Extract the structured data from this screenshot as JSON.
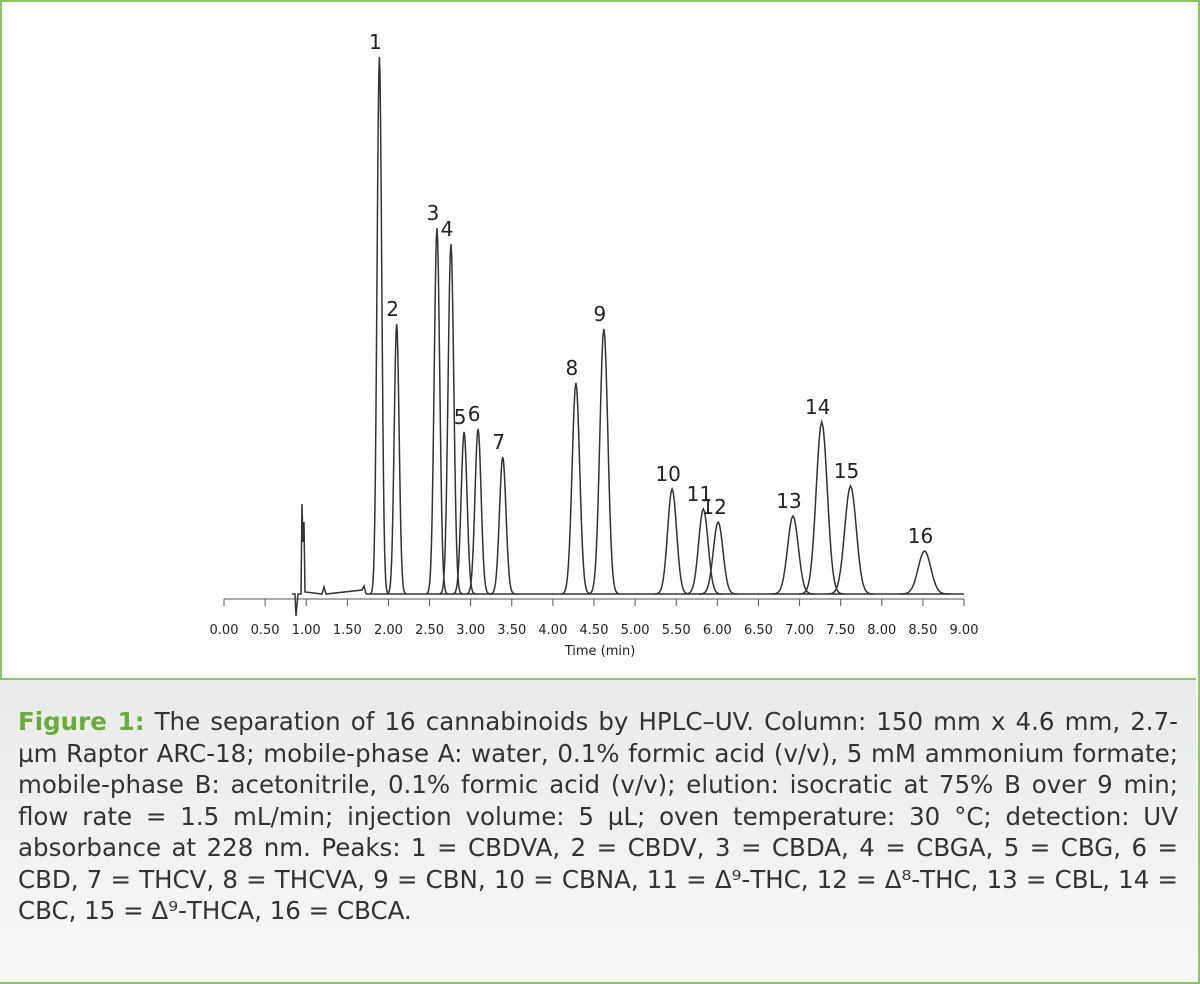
{
  "chart_data": {
    "type": "chromatogram",
    "xlabel": "Time (min)",
    "xlim": [
      0,
      9
    ],
    "xticks": [
      {
        "value": 0,
        "label": "0.00"
      },
      {
        "value": 0.5,
        "label": "0.50"
      },
      {
        "value": 1,
        "label": "1.00"
      },
      {
        "value": 1.5,
        "label": "1.50"
      },
      {
        "value": 2,
        "label": "2.00"
      },
      {
        "value": 2.5,
        "label": "2.50"
      },
      {
        "value": 3,
        "label": "3.00"
      },
      {
        "value": 3.5,
        "label": "3.50"
      },
      {
        "value": 4,
        "label": "4.00"
      },
      {
        "value": 4.5,
        "label": "4.50"
      },
      {
        "value": 5,
        "label": "5.00"
      },
      {
        "value": 5.5,
        "label": "5.50"
      },
      {
        "value": 6,
        "label": "6.00"
      },
      {
        "value": 6.5,
        "label": "6.50"
      },
      {
        "value": 7,
        "label": "7.00"
      },
      {
        "value": 7.5,
        "label": "7.50"
      },
      {
        "value": 8,
        "label": "8.00"
      },
      {
        "value": 8.5,
        "label": "8.50"
      },
      {
        "value": 9,
        "label": "9.00"
      }
    ],
    "ylim": [
      0,
      560
    ],
    "color": "#333333",
    "peaks": [
      {
        "label": "1",
        "time": 1.89,
        "height": 537
      },
      {
        "label": "2",
        "time": 2.1,
        "height": 270
      },
      {
        "label": "3",
        "time": 2.59,
        "height": 366
      },
      {
        "label": "4",
        "time": 2.76,
        "height": 350
      },
      {
        "label": "5",
        "time": 2.92,
        "height": 162
      },
      {
        "label": "6",
        "time": 3.09,
        "height": 165
      },
      {
        "label": "7",
        "time": 3.39,
        "height": 137
      },
      {
        "label": "8",
        "time": 4.28,
        "height": 211
      },
      {
        "label": "9",
        "time": 4.62,
        "height": 265
      },
      {
        "label": "10",
        "time": 5.45,
        "height": 105
      },
      {
        "label": "11",
        "time": 5.83,
        "height": 85
      },
      {
        "label": "12",
        "time": 6.01,
        "height": 72
      },
      {
        "label": "13",
        "time": 6.92,
        "height": 78
      },
      {
        "label": "14",
        "time": 7.27,
        "height": 172
      },
      {
        "label": "15",
        "time": 7.62,
        "height": 108
      },
      {
        "label": "16",
        "time": 8.52,
        "height": 43
      }
    ]
  },
  "caption": {
    "label": "Figure 1:",
    "text": "The separation of 16 cannabinoids by HPLC–UV. Column: 150 mm x 4.6 mm, 2.7-µm Raptor ARC-18; mobile-phase A: water, 0.1% formic acid (v/v), 5 mM ammonium formate; mobile-phase B: acetonitrile, 0.1% formic acid (v/v); elution: isocratic at 75% B over 9 min; flow rate = 1.5 mL/min; injection volume: 5 µL; oven temperature: 30 °C; detection: UV absorbance at 228 nm. Peaks: 1 = CBDVA, 2 = CBDV, 3 = CBDA, 4 = CBGA, 5 = CBG, 6 = CBD, 7 = THCV, 8 = THCVA, 9 = CBN, 10 = CBNA, 11 = Δ⁹-THC, 12 = Δ⁸-THC, 13 = CBL, 14 = CBC, 15 = Δ⁹-THCA, 16 = CBCA."
  }
}
